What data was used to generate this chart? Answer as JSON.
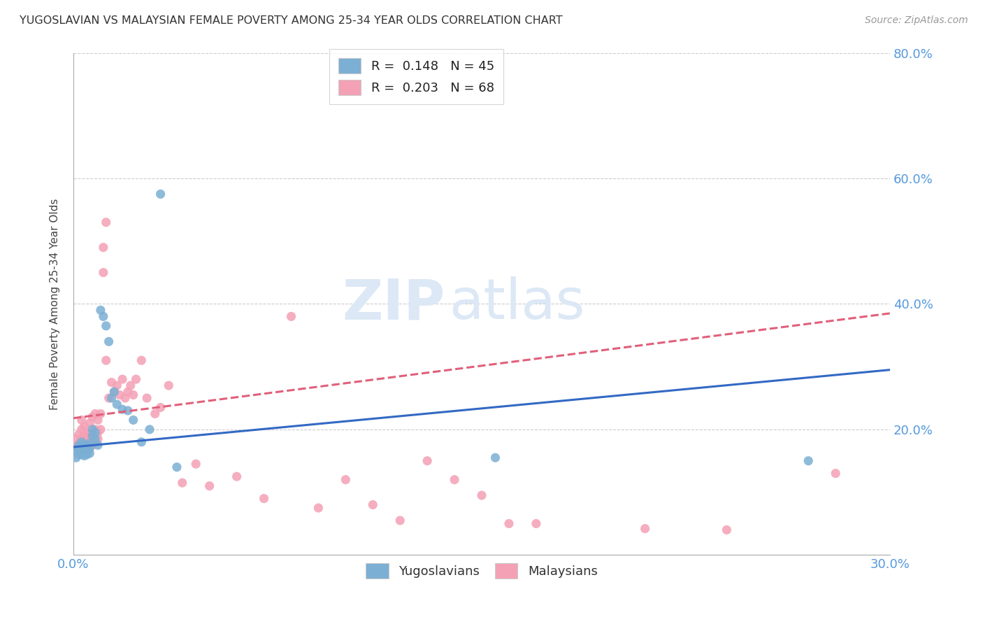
{
  "title": "YUGOSLAVIAN VS MALAYSIAN FEMALE POVERTY AMONG 25-34 YEAR OLDS CORRELATION CHART",
  "source": "Source: ZipAtlas.com",
  "ylabel": "Female Poverty Among 25-34 Year Olds",
  "xlim": [
    0.0,
    0.3
  ],
  "ylim": [
    0.0,
    0.8
  ],
  "xticks": [
    0.0,
    0.05,
    0.1,
    0.15,
    0.2,
    0.25,
    0.3
  ],
  "xticklabels": [
    "0.0%",
    "",
    "",
    "",
    "",
    "",
    "30.0%"
  ],
  "yticks": [
    0.0,
    0.2,
    0.4,
    0.6,
    0.8
  ],
  "yticklabels": [
    "",
    "20.0%",
    "40.0%",
    "60.0%",
    "80.0%"
  ],
  "background_color": "#ffffff",
  "grid_color": "#cccccc",
  "yug_color": "#7bafd4",
  "mal_color": "#f4a0b5",
  "yug_line_color": "#3369c4",
  "mal_line_color": "#e0607a",
  "axis_color": "#5599dd",
  "watermark_zip": "ZIP",
  "watermark_atlas": "atlas",
  "legend_R_yug": "0.148",
  "legend_N_yug": "45",
  "legend_R_mal": "0.203",
  "legend_N_mal": "68",
  "yug_trend_x0": 0.0,
  "yug_trend_y0": 0.172,
  "yug_trend_x1": 0.3,
  "yug_trend_y1": 0.295,
  "mal_trend_x0": 0.0,
  "mal_trend_y0": 0.218,
  "mal_trend_x1": 0.3,
  "mal_trend_y1": 0.385,
  "yug_scatter_x": [
    0.001,
    0.001,
    0.002,
    0.002,
    0.002,
    0.002,
    0.002,
    0.003,
    0.003,
    0.003,
    0.003,
    0.003,
    0.004,
    0.004,
    0.004,
    0.004,
    0.004,
    0.005,
    0.005,
    0.005,
    0.005,
    0.006,
    0.006,
    0.006,
    0.007,
    0.007,
    0.008,
    0.008,
    0.009,
    0.01,
    0.011,
    0.012,
    0.013,
    0.014,
    0.015,
    0.016,
    0.018,
    0.02,
    0.022,
    0.025,
    0.028,
    0.032,
    0.038,
    0.155,
    0.27
  ],
  "yug_scatter_y": [
    0.165,
    0.155,
    0.17,
    0.175,
    0.168,
    0.16,
    0.172,
    0.165,
    0.175,
    0.16,
    0.172,
    0.18,
    0.168,
    0.175,
    0.165,
    0.158,
    0.172,
    0.16,
    0.165,
    0.175,
    0.168,
    0.162,
    0.17,
    0.178,
    0.19,
    0.2,
    0.185,
    0.195,
    0.175,
    0.39,
    0.38,
    0.365,
    0.34,
    0.25,
    0.26,
    0.24,
    0.232,
    0.23,
    0.215,
    0.18,
    0.2,
    0.575,
    0.14,
    0.155,
    0.15
  ],
  "mal_scatter_x": [
    0.001,
    0.001,
    0.002,
    0.002,
    0.002,
    0.003,
    0.003,
    0.003,
    0.003,
    0.004,
    0.004,
    0.004,
    0.005,
    0.005,
    0.005,
    0.005,
    0.006,
    0.006,
    0.006,
    0.006,
    0.007,
    0.007,
    0.007,
    0.008,
    0.008,
    0.009,
    0.009,
    0.009,
    0.01,
    0.01,
    0.011,
    0.011,
    0.012,
    0.012,
    0.013,
    0.014,
    0.015,
    0.016,
    0.017,
    0.018,
    0.019,
    0.02,
    0.021,
    0.022,
    0.023,
    0.025,
    0.027,
    0.03,
    0.032,
    0.035,
    0.04,
    0.045,
    0.05,
    0.06,
    0.07,
    0.08,
    0.09,
    0.1,
    0.11,
    0.12,
    0.13,
    0.14,
    0.15,
    0.16,
    0.17,
    0.21,
    0.24,
    0.28
  ],
  "mal_scatter_y": [
    0.172,
    0.185,
    0.165,
    0.178,
    0.192,
    0.17,
    0.185,
    0.2,
    0.215,
    0.175,
    0.19,
    0.205,
    0.168,
    0.178,
    0.185,
    0.195,
    0.172,
    0.18,
    0.192,
    0.21,
    0.175,
    0.185,
    0.22,
    0.2,
    0.225,
    0.185,
    0.195,
    0.215,
    0.2,
    0.225,
    0.45,
    0.49,
    0.53,
    0.31,
    0.25,
    0.275,
    0.26,
    0.27,
    0.255,
    0.28,
    0.25,
    0.26,
    0.27,
    0.255,
    0.28,
    0.31,
    0.25,
    0.225,
    0.235,
    0.27,
    0.115,
    0.145,
    0.11,
    0.125,
    0.09,
    0.38,
    0.075,
    0.12,
    0.08,
    0.055,
    0.15,
    0.12,
    0.095,
    0.05,
    0.05,
    0.042,
    0.04,
    0.13
  ]
}
